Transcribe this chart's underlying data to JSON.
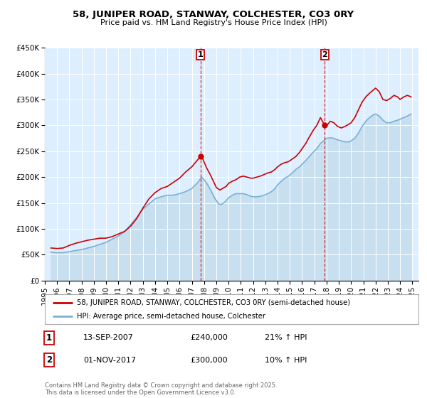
{
  "title": "58, JUNIPER ROAD, STANWAY, COLCHESTER, CO3 0RY",
  "subtitle": "Price paid vs. HM Land Registry's House Price Index (HPI)",
  "legend_line1": "58, JUNIPER ROAD, STANWAY, COLCHESTER, CO3 0RY (semi-detached house)",
  "legend_line2": "HPI: Average price, semi-detached house, Colchester",
  "property_color": "#cc0000",
  "hpi_color": "#7ab0d4",
  "hpi_fill_color": "#c8dff0",
  "background_color": "#ffffff",
  "plot_bg_color": "#ddeeff",
  "grid_color": "#ffffff",
  "annotation1": {
    "label": "1",
    "date": "13-SEP-2007",
    "price": "£240,000",
    "hpi": "21% ↑ HPI",
    "x_year": 2007.71,
    "y": 240000
  },
  "annotation2": {
    "label": "2",
    "date": "01-NOV-2017",
    "price": "£300,000",
    "hpi": "10% ↑ HPI",
    "x_year": 2017.84,
    "y": 300000
  },
  "footer": "Contains HM Land Registry data © Crown copyright and database right 2025.\nThis data is licensed under the Open Government Licence v3.0.",
  "ylim": [
    0,
    450000
  ],
  "xlim_start": 1995.0,
  "xlim_end": 2025.5,
  "yticks": [
    0,
    50000,
    100000,
    150000,
    200000,
    250000,
    300000,
    350000,
    400000,
    450000
  ],
  "ytick_labels": [
    "£0",
    "£50K",
    "£100K",
    "£150K",
    "£200K",
    "£250K",
    "£300K",
    "£350K",
    "£400K",
    "£450K"
  ],
  "xticks": [
    1995,
    1996,
    1997,
    1998,
    1999,
    2000,
    2001,
    2002,
    2003,
    2004,
    2005,
    2006,
    2007,
    2008,
    2009,
    2010,
    2011,
    2012,
    2013,
    2014,
    2015,
    2016,
    2017,
    2018,
    2019,
    2020,
    2021,
    2022,
    2023,
    2024,
    2025
  ],
  "property_data": [
    [
      1995.5,
      63000
    ],
    [
      1996.0,
      62000
    ],
    [
      1996.5,
      63000
    ],
    [
      1997.0,
      68000
    ],
    [
      1997.5,
      72000
    ],
    [
      1998.0,
      75000
    ],
    [
      1998.5,
      78000
    ],
    [
      1999.0,
      80000
    ],
    [
      1999.5,
      82000
    ],
    [
      2000.0,
      82000
    ],
    [
      2000.5,
      85000
    ],
    [
      2001.0,
      90000
    ],
    [
      2001.5,
      95000
    ],
    [
      2002.0,
      105000
    ],
    [
      2002.5,
      120000
    ],
    [
      2003.0,
      140000
    ],
    [
      2003.5,
      158000
    ],
    [
      2004.0,
      170000
    ],
    [
      2004.5,
      178000
    ],
    [
      2005.0,
      182000
    ],
    [
      2005.5,
      190000
    ],
    [
      2006.0,
      198000
    ],
    [
      2006.5,
      210000
    ],
    [
      2007.0,
      220000
    ],
    [
      2007.71,
      240000
    ],
    [
      2007.9,
      235000
    ],
    [
      2008.2,
      218000
    ],
    [
      2008.5,
      205000
    ],
    [
      2008.8,
      190000
    ],
    [
      2009.0,
      180000
    ],
    [
      2009.3,
      175000
    ],
    [
      2009.5,
      178000
    ],
    [
      2009.8,
      182000
    ],
    [
      2010.0,
      188000
    ],
    [
      2010.3,
      192000
    ],
    [
      2010.6,
      195000
    ],
    [
      2010.9,
      200000
    ],
    [
      2011.2,
      202000
    ],
    [
      2011.5,
      200000
    ],
    [
      2011.8,
      198000
    ],
    [
      2012.0,
      198000
    ],
    [
      2012.3,
      200000
    ],
    [
      2012.6,
      202000
    ],
    [
      2012.9,
      205000
    ],
    [
      2013.2,
      208000
    ],
    [
      2013.5,
      210000
    ],
    [
      2013.8,
      215000
    ],
    [
      2014.0,
      220000
    ],
    [
      2014.3,
      225000
    ],
    [
      2014.6,
      228000
    ],
    [
      2014.9,
      230000
    ],
    [
      2015.2,
      235000
    ],
    [
      2015.5,
      240000
    ],
    [
      2015.8,
      248000
    ],
    [
      2016.0,
      255000
    ],
    [
      2016.3,
      265000
    ],
    [
      2016.6,
      278000
    ],
    [
      2016.9,
      290000
    ],
    [
      2017.2,
      300000
    ],
    [
      2017.5,
      315000
    ],
    [
      2017.84,
      300000
    ],
    [
      2017.9,
      298000
    ],
    [
      2018.1,
      302000
    ],
    [
      2018.3,
      308000
    ],
    [
      2018.6,
      305000
    ],
    [
      2018.9,
      298000
    ],
    [
      2019.2,
      295000
    ],
    [
      2019.5,
      298000
    ],
    [
      2019.8,
      302000
    ],
    [
      2020.0,
      305000
    ],
    [
      2020.3,
      315000
    ],
    [
      2020.6,
      330000
    ],
    [
      2020.9,
      345000
    ],
    [
      2021.2,
      355000
    ],
    [
      2021.5,
      362000
    ],
    [
      2021.8,
      368000
    ],
    [
      2022.0,
      372000
    ],
    [
      2022.3,
      365000
    ],
    [
      2022.6,
      350000
    ],
    [
      2022.9,
      348000
    ],
    [
      2023.2,
      352000
    ],
    [
      2023.5,
      358000
    ],
    [
      2023.8,
      355000
    ],
    [
      2024.0,
      350000
    ],
    [
      2024.3,
      355000
    ],
    [
      2024.6,
      358000
    ],
    [
      2024.9,
      355000
    ]
  ],
  "hpi_data": [
    [
      1995.5,
      55000
    ],
    [
      1996.0,
      54000
    ],
    [
      1996.5,
      54000
    ],
    [
      1997.0,
      56000
    ],
    [
      1997.5,
      58000
    ],
    [
      1998.0,
      60000
    ],
    [
      1998.5,
      63000
    ],
    [
      1999.0,
      66000
    ],
    [
      1999.5,
      70000
    ],
    [
      2000.0,
      74000
    ],
    [
      2000.5,
      80000
    ],
    [
      2001.0,
      86000
    ],
    [
      2001.5,
      94000
    ],
    [
      2002.0,
      108000
    ],
    [
      2002.5,
      122000
    ],
    [
      2003.0,
      138000
    ],
    [
      2003.5,
      148000
    ],
    [
      2004.0,
      158000
    ],
    [
      2004.5,
      162000
    ],
    [
      2005.0,
      165000
    ],
    [
      2005.5,
      165000
    ],
    [
      2006.0,
      168000
    ],
    [
      2006.5,
      172000
    ],
    [
      2007.0,
      178000
    ],
    [
      2007.5,
      190000
    ],
    [
      2007.8,
      200000
    ],
    [
      2008.0,
      195000
    ],
    [
      2008.3,
      185000
    ],
    [
      2008.6,
      172000
    ],
    [
      2008.9,
      158000
    ],
    [
      2009.2,
      148000
    ],
    [
      2009.4,
      147000
    ],
    [
      2009.7,
      152000
    ],
    [
      2010.0,
      160000
    ],
    [
      2010.3,
      165000
    ],
    [
      2010.6,
      168000
    ],
    [
      2010.9,
      168000
    ],
    [
      2011.2,
      168000
    ],
    [
      2011.5,
      166000
    ],
    [
      2011.8,
      163000
    ],
    [
      2012.0,
      162000
    ],
    [
      2012.3,
      162000
    ],
    [
      2012.6,
      163000
    ],
    [
      2012.9,
      165000
    ],
    [
      2013.2,
      168000
    ],
    [
      2013.5,
      172000
    ],
    [
      2013.8,
      178000
    ],
    [
      2014.0,
      185000
    ],
    [
      2014.3,
      192000
    ],
    [
      2014.6,
      198000
    ],
    [
      2014.9,
      202000
    ],
    [
      2015.2,
      208000
    ],
    [
      2015.5,
      215000
    ],
    [
      2015.8,
      220000
    ],
    [
      2016.0,
      225000
    ],
    [
      2016.3,
      232000
    ],
    [
      2016.6,
      240000
    ],
    [
      2016.9,
      248000
    ],
    [
      2017.2,
      255000
    ],
    [
      2017.5,
      265000
    ],
    [
      2017.84,
      272000
    ],
    [
      2018.0,
      275000
    ],
    [
      2018.3,
      276000
    ],
    [
      2018.6,
      275000
    ],
    [
      2018.9,
      272000
    ],
    [
      2019.2,
      270000
    ],
    [
      2019.5,
      268000
    ],
    [
      2019.8,
      268000
    ],
    [
      2020.0,
      270000
    ],
    [
      2020.3,
      275000
    ],
    [
      2020.6,
      285000
    ],
    [
      2020.9,
      298000
    ],
    [
      2021.2,
      308000
    ],
    [
      2021.5,
      315000
    ],
    [
      2021.8,
      320000
    ],
    [
      2022.0,
      322000
    ],
    [
      2022.3,
      318000
    ],
    [
      2022.6,
      310000
    ],
    [
      2022.9,
      305000
    ],
    [
      2023.2,
      305000
    ],
    [
      2023.5,
      308000
    ],
    [
      2023.8,
      310000
    ],
    [
      2024.0,
      312000
    ],
    [
      2024.3,
      315000
    ],
    [
      2024.6,
      318000
    ],
    [
      2024.9,
      322000
    ]
  ]
}
